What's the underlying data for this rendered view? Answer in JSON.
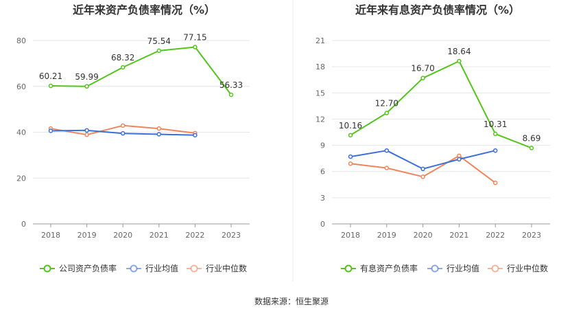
{
  "source": "数据来源：恒生聚源",
  "chart_data": [
    {
      "type": "line",
      "title": "近年来资产负债率情况（%）",
      "categories": [
        "2018",
        "2019",
        "2020",
        "2021",
        "2022",
        "2023"
      ],
      "ylim": [
        0,
        80
      ],
      "yticks": [
        0,
        20,
        40,
        60,
        80
      ],
      "grid": true,
      "legend_position": "bottom",
      "series": [
        {
          "name": "公司资产负债率",
          "color": "#52c41a",
          "values": [
            60.21,
            59.99,
            68.32,
            75.54,
            77.15,
            56.33
          ],
          "labels": [
            "60.21",
            "59.99",
            "68.32",
            "75.54",
            "77.15",
            "56.33"
          ]
        },
        {
          "name": "行业均值",
          "color": "#3b6fd8",
          "values": [
            40.6,
            40.8,
            39.5,
            39.1,
            38.7,
            null
          ]
        },
        {
          "name": "行业中位数",
          "color": "#f0855c",
          "values": [
            41.6,
            38.9,
            42.9,
            41.6,
            39.6,
            null
          ]
        }
      ]
    },
    {
      "type": "line",
      "title": "近年来有息资产负债率情况（%）",
      "categories": [
        "2018",
        "2019",
        "2020",
        "2021",
        "2022",
        "2023"
      ],
      "ylim": [
        0,
        21
      ],
      "yticks": [
        0,
        3,
        6,
        9,
        12,
        15,
        18,
        21
      ],
      "grid": true,
      "legend_position": "bottom",
      "series": [
        {
          "name": "有息资产负债率",
          "color": "#52c41a",
          "values": [
            10.16,
            12.7,
            16.7,
            18.64,
            10.31,
            8.69
          ],
          "labels": [
            "10.16",
            "12.70",
            "16.70",
            "18.64",
            "10.31",
            "8.69"
          ]
        },
        {
          "name": "行业均值",
          "color": "#3b6fd8",
          "values": [
            7.7,
            8.4,
            6.3,
            7.4,
            8.4,
            null
          ]
        },
        {
          "name": "行业中位数",
          "color": "#f0855c",
          "values": [
            6.9,
            6.4,
            5.4,
            7.8,
            4.7,
            null
          ]
        }
      ]
    }
  ]
}
